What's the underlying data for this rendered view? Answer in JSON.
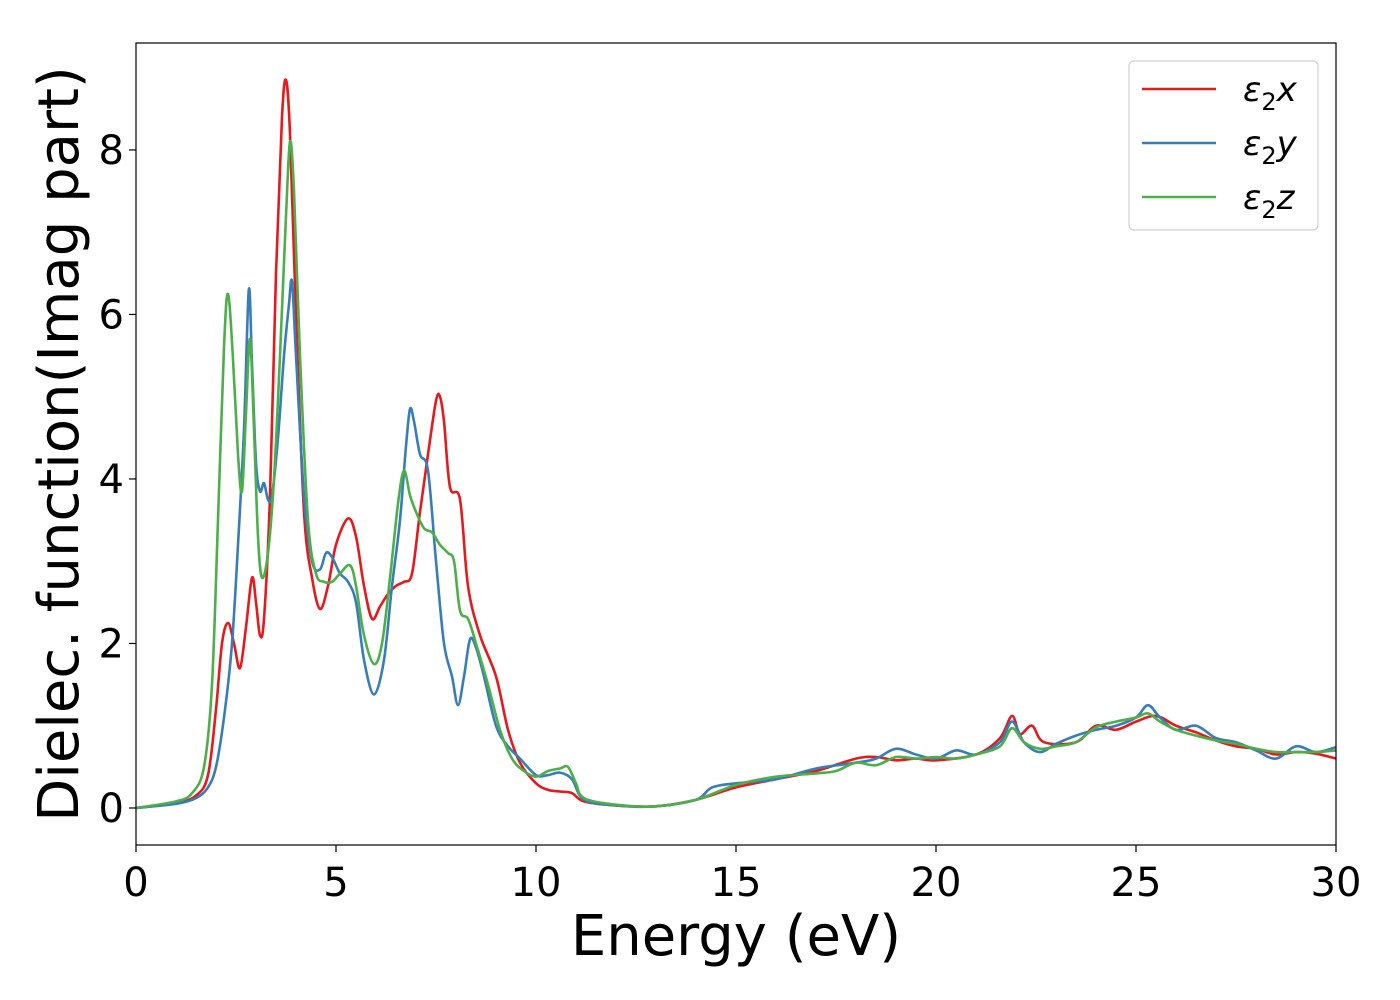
{
  "chart_data": {
    "type": "line",
    "xlabel": "Energy (eV)",
    "ylabel": "Dielec. function(Imag part)",
    "xlim": [
      0,
      30
    ],
    "ylim": [
      -0.45,
      9.3
    ],
    "xticks": [
      "0",
      "5",
      "10",
      "15",
      "20",
      "25",
      "30"
    ],
    "yticks": [
      "0",
      "2",
      "4",
      "6",
      "8"
    ],
    "grid": false,
    "legend_position": "top-right",
    "series": [
      {
        "name": "ε2x",
        "legend_base": "ε",
        "legend_sub": "2",
        "legend_suffix": "x",
        "color": "#e41a1c",
        "points": [
          [
            0,
            0
          ],
          [
            1,
            0.06
          ],
          [
            1.5,
            0.15
          ],
          [
            1.8,
            0.4
          ],
          [
            2.0,
            1.2
          ],
          [
            2.15,
            2.0
          ],
          [
            2.3,
            2.25
          ],
          [
            2.45,
            2.0
          ],
          [
            2.6,
            1.7
          ],
          [
            2.75,
            2.2
          ],
          [
            2.9,
            2.8
          ],
          [
            3.0,
            2.5
          ],
          [
            3.1,
            2.1
          ],
          [
            3.2,
            2.3
          ],
          [
            3.35,
            3.8
          ],
          [
            3.5,
            6.5
          ],
          [
            3.65,
            8.4
          ],
          [
            3.75,
            8.85
          ],
          [
            3.85,
            8.2
          ],
          [
            4.0,
            6.0
          ],
          [
            4.2,
            3.6
          ],
          [
            4.4,
            2.8
          ],
          [
            4.6,
            2.42
          ],
          [
            4.8,
            2.7
          ],
          [
            5.0,
            3.2
          ],
          [
            5.3,
            3.52
          ],
          [
            5.5,
            3.3
          ],
          [
            5.7,
            2.7
          ],
          [
            5.9,
            2.3
          ],
          [
            6.1,
            2.45
          ],
          [
            6.3,
            2.6
          ],
          [
            6.5,
            2.7
          ],
          [
            6.7,
            2.75
          ],
          [
            6.9,
            2.85
          ],
          [
            7.1,
            3.6
          ],
          [
            7.3,
            4.3
          ],
          [
            7.5,
            4.95
          ],
          [
            7.6,
            5.0
          ],
          [
            7.7,
            4.7
          ],
          [
            7.85,
            3.9
          ],
          [
            8.1,
            3.75
          ],
          [
            8.3,
            2.7
          ],
          [
            8.6,
            2.1
          ],
          [
            9.0,
            1.6
          ],
          [
            9.3,
            0.95
          ],
          [
            9.6,
            0.55
          ],
          [
            10.0,
            0.3
          ],
          [
            10.3,
            0.22
          ],
          [
            10.6,
            0.2
          ],
          [
            10.9,
            0.18
          ],
          [
            11.2,
            0.08
          ],
          [
            12,
            0.03
          ],
          [
            13,
            0.02
          ],
          [
            14,
            0.1
          ],
          [
            15,
            0.25
          ],
          [
            16,
            0.35
          ],
          [
            17,
            0.45
          ],
          [
            18,
            0.6
          ],
          [
            18.5,
            0.62
          ],
          [
            19,
            0.58
          ],
          [
            19.5,
            0.6
          ],
          [
            20,
            0.58
          ],
          [
            21,
            0.65
          ],
          [
            21.6,
            0.85
          ],
          [
            21.9,
            1.12
          ],
          [
            22.1,
            0.9
          ],
          [
            22.4,
            1.0
          ],
          [
            22.7,
            0.8
          ],
          [
            23.5,
            0.8
          ],
          [
            24,
            1.0
          ],
          [
            24.5,
            0.95
          ],
          [
            25,
            1.05
          ],
          [
            25.5,
            1.12
          ],
          [
            26,
            1.0
          ],
          [
            26.5,
            0.92
          ],
          [
            27,
            0.82
          ],
          [
            27.5,
            0.75
          ],
          [
            28,
            0.72
          ],
          [
            28.5,
            0.65
          ],
          [
            29,
            0.68
          ],
          [
            29.5,
            0.66
          ],
          [
            30,
            0.6
          ]
        ]
      },
      {
        "name": "ε2y",
        "legend_base": "ε",
        "legend_sub": "2",
        "legend_suffix": "y",
        "color": "#377eb8",
        "points": [
          [
            0,
            0
          ],
          [
            1,
            0.05
          ],
          [
            1.5,
            0.12
          ],
          [
            1.8,
            0.25
          ],
          [
            2.0,
            0.5
          ],
          [
            2.2,
            1.1
          ],
          [
            2.4,
            2.0
          ],
          [
            2.55,
            3.2
          ],
          [
            2.7,
            4.6
          ],
          [
            2.82,
            6.3
          ],
          [
            2.9,
            5.4
          ],
          [
            3.0,
            4.2
          ],
          [
            3.1,
            3.85
          ],
          [
            3.2,
            3.95
          ],
          [
            3.3,
            3.75
          ],
          [
            3.4,
            3.8
          ],
          [
            3.55,
            4.5
          ],
          [
            3.7,
            5.5
          ],
          [
            3.82,
            6.1
          ],
          [
            3.9,
            6.4
          ],
          [
            4.0,
            5.5
          ],
          [
            4.2,
            3.8
          ],
          [
            4.4,
            3.0
          ],
          [
            4.6,
            2.9
          ],
          [
            4.75,
            3.1
          ],
          [
            4.9,
            3.05
          ],
          [
            5.1,
            2.85
          ],
          [
            5.3,
            2.75
          ],
          [
            5.5,
            2.5
          ],
          [
            5.7,
            1.8
          ],
          [
            5.95,
            1.38
          ],
          [
            6.2,
            1.8
          ],
          [
            6.4,
            2.7
          ],
          [
            6.6,
            3.5
          ],
          [
            6.75,
            4.4
          ],
          [
            6.85,
            4.85
          ],
          [
            6.95,
            4.7
          ],
          [
            7.1,
            4.3
          ],
          [
            7.3,
            4.1
          ],
          [
            7.5,
            3.0
          ],
          [
            7.7,
            2.0
          ],
          [
            7.9,
            1.6
          ],
          [
            8.05,
            1.25
          ],
          [
            8.2,
            1.6
          ],
          [
            8.35,
            2.05
          ],
          [
            8.5,
            1.95
          ],
          [
            8.7,
            1.6
          ],
          [
            9.0,
            1.0
          ],
          [
            9.3,
            0.75
          ],
          [
            9.6,
            0.6
          ],
          [
            10.0,
            0.4
          ],
          [
            10.3,
            0.4
          ],
          [
            10.6,
            0.43
          ],
          [
            10.9,
            0.35
          ],
          [
            11.2,
            0.1
          ],
          [
            12,
            0.03
          ],
          [
            13,
            0.02
          ],
          [
            14,
            0.1
          ],
          [
            14.4,
            0.25
          ],
          [
            15,
            0.3
          ],
          [
            16,
            0.35
          ],
          [
            17,
            0.48
          ],
          [
            18,
            0.55
          ],
          [
            18.5,
            0.6
          ],
          [
            19,
            0.72
          ],
          [
            19.5,
            0.65
          ],
          [
            20,
            0.6
          ],
          [
            20.5,
            0.7
          ],
          [
            21,
            0.65
          ],
          [
            21.6,
            0.8
          ],
          [
            21.9,
            1.05
          ],
          [
            22.2,
            0.8
          ],
          [
            22.6,
            0.68
          ],
          [
            23,
            0.78
          ],
          [
            23.5,
            0.88
          ],
          [
            24,
            0.95
          ],
          [
            24.5,
            1.0
          ],
          [
            25,
            1.1
          ],
          [
            25.3,
            1.25
          ],
          [
            25.6,
            1.1
          ],
          [
            26,
            0.95
          ],
          [
            26.5,
            1.0
          ],
          [
            27,
            0.85
          ],
          [
            27.5,
            0.8
          ],
          [
            28,
            0.7
          ],
          [
            28.5,
            0.6
          ],
          [
            29,
            0.75
          ],
          [
            29.5,
            0.68
          ],
          [
            30,
            0.74
          ]
        ]
      },
      {
        "name": "ε2z",
        "legend_base": "ε",
        "legend_sub": "2",
        "legend_suffix": "z",
        "color": "#4daf4a",
        "points": [
          [
            0,
            0
          ],
          [
            1,
            0.08
          ],
          [
            1.4,
            0.18
          ],
          [
            1.7,
            0.5
          ],
          [
            1.9,
            1.5
          ],
          [
            2.05,
            3.5
          ],
          [
            2.2,
            5.6
          ],
          [
            2.3,
            6.25
          ],
          [
            2.42,
            5.5
          ],
          [
            2.55,
            4.3
          ],
          [
            2.65,
            3.85
          ],
          [
            2.75,
            4.8
          ],
          [
            2.85,
            5.7
          ],
          [
            2.95,
            4.6
          ],
          [
            3.05,
            3.3
          ],
          [
            3.15,
            2.8
          ],
          [
            3.3,
            3.1
          ],
          [
            3.45,
            4.0
          ],
          [
            3.6,
            5.5
          ],
          [
            3.75,
            7.2
          ],
          [
            3.85,
            8.1
          ],
          [
            3.95,
            7.5
          ],
          [
            4.1,
            5.5
          ],
          [
            4.3,
            3.5
          ],
          [
            4.5,
            2.85
          ],
          [
            4.7,
            2.75
          ],
          [
            4.9,
            2.75
          ],
          [
            5.1,
            2.85
          ],
          [
            5.35,
            2.95
          ],
          [
            5.5,
            2.7
          ],
          [
            5.7,
            2.1
          ],
          [
            5.95,
            1.75
          ],
          [
            6.15,
            2.0
          ],
          [
            6.35,
            2.8
          ],
          [
            6.55,
            3.7
          ],
          [
            6.7,
            4.1
          ],
          [
            6.85,
            3.8
          ],
          [
            7.0,
            3.6
          ],
          [
            7.2,
            3.4
          ],
          [
            7.4,
            3.35
          ],
          [
            7.6,
            3.2
          ],
          [
            7.8,
            3.1
          ],
          [
            7.95,
            3.0
          ],
          [
            8.1,
            2.4
          ],
          [
            8.3,
            2.3
          ],
          [
            8.5,
            2.0
          ],
          [
            8.8,
            1.5
          ],
          [
            9.1,
            0.95
          ],
          [
            9.4,
            0.6
          ],
          [
            9.7,
            0.45
          ],
          [
            10.0,
            0.38
          ],
          [
            10.3,
            0.45
          ],
          [
            10.6,
            0.48
          ],
          [
            10.8,
            0.5
          ],
          [
            11.0,
            0.3
          ],
          [
            11.2,
            0.12
          ],
          [
            12,
            0.04
          ],
          [
            13,
            0.02
          ],
          [
            14,
            0.1
          ],
          [
            15,
            0.28
          ],
          [
            16,
            0.38
          ],
          [
            17,
            0.42
          ],
          [
            17.5,
            0.45
          ],
          [
            18,
            0.55
          ],
          [
            18.5,
            0.52
          ],
          [
            19,
            0.62
          ],
          [
            19.5,
            0.6
          ],
          [
            20,
            0.62
          ],
          [
            20.5,
            0.6
          ],
          [
            21,
            0.65
          ],
          [
            21.6,
            0.75
          ],
          [
            21.9,
            0.97
          ],
          [
            22.2,
            0.8
          ],
          [
            22.6,
            0.72
          ],
          [
            23,
            0.75
          ],
          [
            23.5,
            0.8
          ],
          [
            24,
            0.98
          ],
          [
            24.5,
            1.05
          ],
          [
            25,
            1.1
          ],
          [
            25.3,
            1.15
          ],
          [
            25.6,
            1.05
          ],
          [
            26,
            0.95
          ],
          [
            26.5,
            0.88
          ],
          [
            27,
            0.82
          ],
          [
            27.5,
            0.78
          ],
          [
            28,
            0.72
          ],
          [
            28.5,
            0.68
          ],
          [
            29,
            0.68
          ],
          [
            29.5,
            0.68
          ],
          [
            30,
            0.7
          ]
        ]
      }
    ]
  }
}
